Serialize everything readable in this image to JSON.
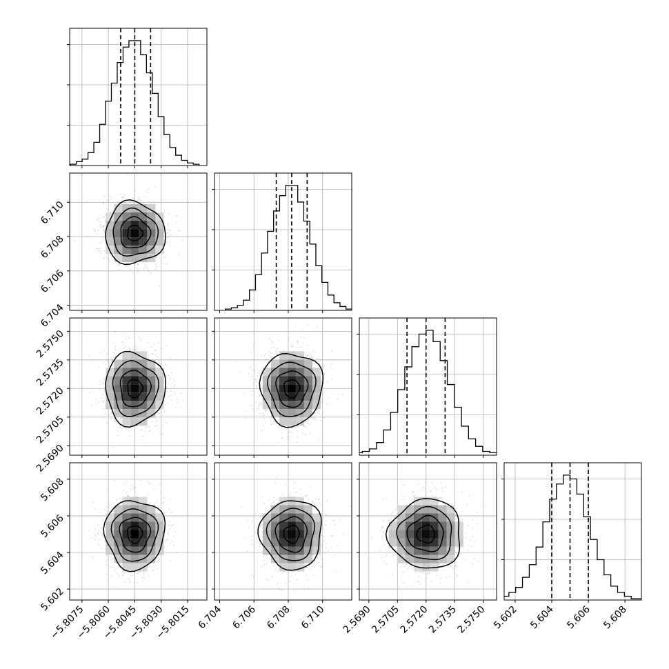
{
  "chart_data": {
    "type": "corner",
    "grid": true,
    "histogram_style": "step",
    "quantile_lines": "dashed",
    "colors": {
      "line": "#000000",
      "grid": "#b0b0b0",
      "points": "#9a9a9a",
      "density_max": "#000000",
      "density_min": "#ffffff"
    },
    "parameters": [
      {
        "range": [
          -5.8082,
          -5.8004
        ],
        "ticks": [
          "−5.8075",
          "−5.8060",
          "−5.8045",
          "−5.8030",
          "−5.8015"
        ],
        "tick_values": [
          -5.8075,
          -5.806,
          -5.8045,
          -5.803,
          -5.8015
        ],
        "quantiles": [
          -5.8053,
          -5.8045,
          -5.8036
        ],
        "mean": -5.8045,
        "sd": 0.00085,
        "hist_bins": [
          1,
          3,
          5,
          10,
          18,
          32,
          50,
          64,
          80,
          92,
          97,
          97,
          86,
          72,
          56,
          38,
          24,
          14,
          8,
          4,
          2,
          1
        ]
      },
      {
        "range": [
          6.7037,
          6.7117
        ],
        "ticks": [
          "6.704",
          "6.706",
          "6.708",
          "6.710"
        ],
        "tick_values": [
          6.704,
          6.706,
          6.708,
          6.71
        ],
        "quantiles": [
          6.7073,
          6.7082,
          6.7091
        ],
        "mean": 6.7082,
        "sd": 0.0009,
        "hist_bins": [
          1,
          2,
          4,
          8,
          16,
          28,
          45,
          62,
          78,
          90,
          98,
          98,
          85,
          70,
          52,
          35,
          22,
          12,
          6,
          3,
          1,
          1
        ]
      },
      {
        "range": [
          2.5685,
          2.5757
        ],
        "ticks": [
          "2.5690",
          "2.5705",
          "2.5720",
          "2.5735",
          "2.5750"
        ],
        "tick_values": [
          2.569,
          2.5705,
          2.572,
          2.5735,
          2.575
        ],
        "quantiles": [
          2.571,
          2.572,
          2.573
        ],
        "mean": 2.572,
        "sd": 0.00095,
        "hist_bins": [
          1,
          2,
          3,
          5,
          10,
          20,
          34,
          52,
          70,
          86,
          96,
          99,
          90,
          75,
          56,
          38,
          23,
          13,
          7,
          3,
          2,
          1
        ]
      },
      {
        "range": [
          5.6014,
          5.6089
        ],
        "ticks": [
          "5.602",
          "5.604",
          "5.606",
          "5.608"
        ],
        "tick_values": [
          5.602,
          5.604,
          5.606,
          5.608
        ],
        "quantiles": [
          5.604,
          5.605,
          5.606
        ],
        "mean": 5.605,
        "sd": 0.00095,
        "hist_bins": [
          1,
          3,
          6,
          10,
          18,
          28,
          42,
          62,
          80,
          92,
          99,
          96,
          84,
          66,
          48,
          32,
          20,
          11,
          6,
          3,
          1,
          1
        ]
      }
    ]
  }
}
